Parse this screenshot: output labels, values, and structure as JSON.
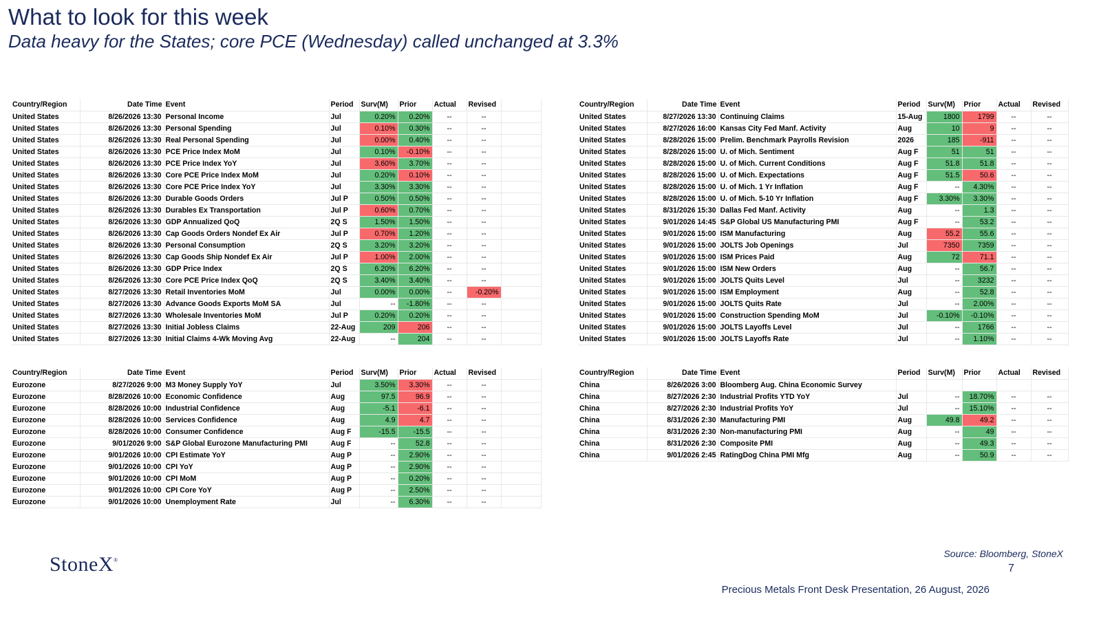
{
  "title": "What to look for this week",
  "subtitle": "Data heavy for the States; core PCE (Wednesday) called unchanged at 3.3%",
  "headers": {
    "country": "Country/Region",
    "datetime": "Date Time",
    "event": "Event",
    "period": "Period",
    "surv": "Surv(M)",
    "prior": "Prior",
    "actual": "Actual",
    "revised": "Revised"
  },
  "colors": {
    "green": "#63be7b",
    "red": "#f8696b",
    "title": "#1a2a5c"
  },
  "tables": [
    {
      "id": "us-left",
      "rows": [
        {
          "country": "United States",
          "dt": "8/26/2026 13:30",
          "event": "Personal Income",
          "period": "Jul",
          "surv": "0.20%",
          "prior": "0.20%",
          "actual": "--",
          "revised": "--",
          "sc": "g",
          "pc": "g"
        },
        {
          "country": "United States",
          "dt": "8/26/2026 13:30",
          "event": "Personal Spending",
          "period": "Jul",
          "surv": "0.10%",
          "prior": "0.30%",
          "actual": "--",
          "revised": "--",
          "sc": "r",
          "pc": "g"
        },
        {
          "country": "United States",
          "dt": "8/26/2026 13:30",
          "event": "Real Personal Spending",
          "period": "Jul",
          "surv": "0.00%",
          "prior": "0.40%",
          "actual": "--",
          "revised": "--",
          "sc": "r",
          "pc": "g"
        },
        {
          "country": "United States",
          "dt": "8/26/2026 13:30",
          "event": "PCE Price Index MoM",
          "period": "Jul",
          "surv": "0.10%",
          "prior": "-0.10%",
          "actual": "--",
          "revised": "--",
          "sc": "g",
          "pc": "r"
        },
        {
          "country": "United States",
          "dt": "8/26/2026 13:30",
          "event": "PCE Price Index YoY",
          "period": "Jul",
          "surv": "3.60%",
          "prior": "3.70%",
          "actual": "--",
          "revised": "--",
          "sc": "r",
          "pc": "g"
        },
        {
          "country": "United States",
          "dt": "8/26/2026 13:30",
          "event": "Core PCE Price Index MoM",
          "period": "Jul",
          "surv": "0.20%",
          "prior": "0.10%",
          "actual": "--",
          "revised": "--",
          "sc": "g",
          "pc": "r"
        },
        {
          "country": "United States",
          "dt": "8/26/2026 13:30",
          "event": "Core PCE Price Index YoY",
          "period": "Jul",
          "surv": "3.30%",
          "prior": "3.30%",
          "actual": "--",
          "revised": "--",
          "sc": "g",
          "pc": "g"
        },
        {
          "country": "United States",
          "dt": "8/26/2026 13:30",
          "event": "Durable Goods Orders",
          "period": "Jul P",
          "surv": "0.50%",
          "prior": "0.50%",
          "actual": "--",
          "revised": "--",
          "sc": "g",
          "pc": "g"
        },
        {
          "country": "United States",
          "dt": "8/26/2026 13:30",
          "event": "Durables Ex Transportation",
          "period": "Jul P",
          "surv": "0.60%",
          "prior": "0.70%",
          "actual": "--",
          "revised": "--",
          "sc": "r",
          "pc": "g"
        },
        {
          "country": "United States",
          "dt": "8/26/2026 13:30",
          "event": "GDP Annualized QoQ",
          "period": "2Q S",
          "surv": "1.50%",
          "prior": "1.50%",
          "actual": "--",
          "revised": "--",
          "sc": "g",
          "pc": "g"
        },
        {
          "country": "United States",
          "dt": "8/26/2026 13:30",
          "event": "Cap Goods Orders Nondef Ex Air",
          "period": "Jul P",
          "surv": "0.70%",
          "prior": "1.20%",
          "actual": "--",
          "revised": "--",
          "sc": "r",
          "pc": "g"
        },
        {
          "country": "United States",
          "dt": "8/26/2026 13:30",
          "event": "Personal Consumption",
          "period": "2Q S",
          "surv": "3.20%",
          "prior": "3.20%",
          "actual": "--",
          "revised": "--",
          "sc": "g",
          "pc": "g"
        },
        {
          "country": "United States",
          "dt": "8/26/2026 13:30",
          "event": "Cap Goods Ship Nondef Ex Air",
          "period": "Jul P",
          "surv": "1.00%",
          "prior": "2.00%",
          "actual": "--",
          "revised": "--",
          "sc": "r",
          "pc": "g"
        },
        {
          "country": "United States",
          "dt": "8/26/2026 13:30",
          "event": "GDP Price Index",
          "period": "2Q S",
          "surv": "6.20%",
          "prior": "6.20%",
          "actual": "--",
          "revised": "--",
          "sc": "g",
          "pc": "g"
        },
        {
          "country": "United States",
          "dt": "8/26/2026 13:30",
          "event": "Core PCE Price Index QoQ",
          "period": "2Q S",
          "surv": "3.40%",
          "prior": "3.40%",
          "actual": "--",
          "revised": "--",
          "sc": "g",
          "pc": "g"
        },
        {
          "country": "United States",
          "dt": "8/27/2026 13:30",
          "event": "Retail Inventories MoM",
          "period": "Jul",
          "surv": "0.00%",
          "prior": "0.00%",
          "actual": "--",
          "revised": "-0.20%",
          "sc": "g",
          "pc": "g",
          "rc": "r"
        },
        {
          "country": "United States",
          "dt": "8/27/2026 13:30",
          "event": "Advance Goods Exports MoM SA",
          "period": "Jul",
          "surv": "--",
          "prior": "-1.80%",
          "actual": "--",
          "revised": "--",
          "sc": "",
          "pc": "g"
        },
        {
          "country": "United States",
          "dt": "8/27/2026 13:30",
          "event": "Wholesale Inventories MoM",
          "period": "Jul P",
          "surv": "0.20%",
          "prior": "0.20%",
          "actual": "--",
          "revised": "--",
          "sc": "g",
          "pc": "g"
        },
        {
          "country": "United States",
          "dt": "8/27/2026 13:30",
          "event": "Initial Jobless Claims",
          "period": "22-Aug",
          "surv": "209",
          "prior": "206",
          "actual": "--",
          "revised": "--",
          "sc": "g",
          "pc": "r"
        },
        {
          "country": "United States",
          "dt": "8/27/2026 13:30",
          "event": "Initial Claims 4-Wk Moving Avg",
          "period": "22-Aug",
          "surv": "--",
          "prior": "204",
          "actual": "--",
          "revised": "--",
          "sc": "",
          "pc": "g"
        }
      ]
    },
    {
      "id": "us-right",
      "rows": [
        {
          "country": "United States",
          "dt": "8/27/2026 13:30",
          "event": "Continuing Claims",
          "period": "15-Aug",
          "surv": "1800",
          "prior": "1799",
          "actual": "--",
          "revised": "--",
          "sc": "g",
          "pc": "r"
        },
        {
          "country": "United States",
          "dt": "8/27/2026 16:00",
          "event": "Kansas City Fed Manf. Activity",
          "period": "Aug",
          "surv": "10",
          "prior": "9",
          "actual": "--",
          "revised": "--",
          "sc": "g",
          "pc": "r"
        },
        {
          "country": "United States",
          "dt": "8/28/2026 15:00",
          "event": "Prelim. Benchmark Payrolls Revision",
          "period": "2026",
          "surv": "185",
          "prior": "-911",
          "actual": "--",
          "revised": "--",
          "sc": "g",
          "pc": "r"
        },
        {
          "country": "United States",
          "dt": "8/28/2026 15:00",
          "event": "U. of Mich. Sentiment",
          "period": "Aug F",
          "surv": "51",
          "prior": "51",
          "actual": "--",
          "revised": "--",
          "sc": "g",
          "pc": "g"
        },
        {
          "country": "United States",
          "dt": "8/28/2026 15:00",
          "event": "U. of Mich. Current Conditions",
          "period": "Aug F",
          "surv": "51.8",
          "prior": "51.8",
          "actual": "--",
          "revised": "--",
          "sc": "g",
          "pc": "g"
        },
        {
          "country": "United States",
          "dt": "8/28/2026 15:00",
          "event": "U. of Mich. Expectations",
          "period": "Aug F",
          "surv": "51.5",
          "prior": "50.6",
          "actual": "--",
          "revised": "--",
          "sc": "g",
          "pc": "r"
        },
        {
          "country": "United States",
          "dt": "8/28/2026 15:00",
          "event": "U. of Mich. 1 Yr Inflation",
          "period": "Aug F",
          "surv": "--",
          "prior": "4.30%",
          "actual": "--",
          "revised": "--",
          "sc": "",
          "pc": "g"
        },
        {
          "country": "United States",
          "dt": "8/28/2026 15:00",
          "event": "U. of Mich. 5-10 Yr Inflation",
          "period": "Aug F",
          "surv": "3.30%",
          "prior": "3.30%",
          "actual": "--",
          "revised": "--",
          "sc": "g",
          "pc": "g"
        },
        {
          "country": "United States",
          "dt": "8/31/2026 15:30",
          "event": "Dallas Fed Manf. Activity",
          "period": "Aug",
          "surv": "--",
          "prior": "1.3",
          "actual": "--",
          "revised": "--",
          "sc": "",
          "pc": "g"
        },
        {
          "country": "United States",
          "dt": "9/01/2026 14:45",
          "event": "S&P Global US Manufacturing PMI",
          "period": "Aug F",
          "surv": "--",
          "prior": "53.2",
          "actual": "--",
          "revised": "--",
          "sc": "",
          "pc": "g"
        },
        {
          "country": "United States",
          "dt": "9/01/2026 15:00",
          "event": "ISM Manufacturing",
          "period": "Aug",
          "surv": "55.2",
          "prior": "55.6",
          "actual": "--",
          "revised": "--",
          "sc": "r",
          "pc": "g"
        },
        {
          "country": "United States",
          "dt": "9/01/2026 15:00",
          "event": "JOLTS Job Openings",
          "period": "Jul",
          "surv": "7350",
          "prior": "7359",
          "actual": "--",
          "revised": "--",
          "sc": "r",
          "pc": "g"
        },
        {
          "country": "United States",
          "dt": "9/01/2026 15:00",
          "event": "ISM Prices Paid",
          "period": "Aug",
          "surv": "72",
          "prior": "71.1",
          "actual": "--",
          "revised": "--",
          "sc": "g",
          "pc": "r"
        },
        {
          "country": "United States",
          "dt": "9/01/2026 15:00",
          "event": "ISM New Orders",
          "period": "Aug",
          "surv": "--",
          "prior": "56.7",
          "actual": "--",
          "revised": "--",
          "sc": "",
          "pc": "g"
        },
        {
          "country": "United States",
          "dt": "9/01/2026 15:00",
          "event": "JOLTS Quits Level",
          "period": "Jul",
          "surv": "--",
          "prior": "3232",
          "actual": "--",
          "revised": "--",
          "sc": "",
          "pc": "g"
        },
        {
          "country": "United States",
          "dt": "9/01/2026 15:00",
          "event": "ISM Employment",
          "period": "Aug",
          "surv": "--",
          "prior": "52.8",
          "actual": "--",
          "revised": "--",
          "sc": "",
          "pc": "g"
        },
        {
          "country": "United States",
          "dt": "9/01/2026 15:00",
          "event": "JOLTS Quits Rate",
          "period": "Jul",
          "surv": "--",
          "prior": "2.00%",
          "actual": "--",
          "revised": "--",
          "sc": "",
          "pc": "g"
        },
        {
          "country": "United States",
          "dt": "9/01/2026 15:00",
          "event": "Construction Spending MoM",
          "period": "Jul",
          "surv": "-0.10%",
          "prior": "-0.10%",
          "actual": "--",
          "revised": "--",
          "sc": "g",
          "pc": "g"
        },
        {
          "country": "United States",
          "dt": "9/01/2026 15:00",
          "event": "JOLTS Layoffs Level",
          "period": "Jul",
          "surv": "--",
          "prior": "1766",
          "actual": "--",
          "revised": "--",
          "sc": "",
          "pc": "g"
        },
        {
          "country": "United States",
          "dt": "9/01/2026 15:00",
          "event": "JOLTS Layoffs Rate",
          "period": "Jul",
          "surv": "--",
          "prior": "1.10%",
          "actual": "--",
          "revised": "--",
          "sc": "",
          "pc": "g"
        }
      ]
    },
    {
      "id": "eurozone",
      "rows": [
        {
          "country": "Eurozone",
          "dt": "8/27/2026 9:00",
          "event": "M3 Money Supply YoY",
          "period": "Jul",
          "surv": "3.50%",
          "prior": "3.30%",
          "actual": "--",
          "revised": "--",
          "sc": "g",
          "pc": "r"
        },
        {
          "country": "Eurozone",
          "dt": "8/28/2026 10:00",
          "event": "Economic Confidence",
          "period": "Aug",
          "surv": "97.5",
          "prior": "96.9",
          "actual": "--",
          "revised": "--",
          "sc": "g",
          "pc": "r"
        },
        {
          "country": "Eurozone",
          "dt": "8/28/2026 10:00",
          "event": "Industrial Confidence",
          "period": "Aug",
          "surv": "-5.1",
          "prior": "-6.1",
          "actual": "--",
          "revised": "--",
          "sc": "g",
          "pc": "r"
        },
        {
          "country": "Eurozone",
          "dt": "8/28/2026 10:00",
          "event": "Services Confidence",
          "period": "Aug",
          "surv": "4.9",
          "prior": "4.7",
          "actual": "--",
          "revised": "--",
          "sc": "g",
          "pc": "r"
        },
        {
          "country": "Eurozone",
          "dt": "8/28/2026 10:00",
          "event": "Consumer Confidence",
          "period": "Aug F",
          "surv": "-15.5",
          "prior": "-15.5",
          "actual": "--",
          "revised": "--",
          "sc": "g",
          "pc": "g"
        },
        {
          "country": "Eurozone",
          "dt": "9/01/2026 9:00",
          "event": "S&P Global Eurozone Manufacturing PMI",
          "period": "Aug F",
          "surv": "--",
          "prior": "52.8",
          "actual": "--",
          "revised": "--",
          "sc": "",
          "pc": "g"
        },
        {
          "country": "Eurozone",
          "dt": "9/01/2026 10:00",
          "event": "CPI Estimate YoY",
          "period": "Aug P",
          "surv": "--",
          "prior": "2.90%",
          "actual": "--",
          "revised": "--",
          "sc": "",
          "pc": "g"
        },
        {
          "country": "Eurozone",
          "dt": "9/01/2026 10:00",
          "event": "CPI YoY",
          "period": "Aug P",
          "surv": "--",
          "prior": "2.90%",
          "actual": "--",
          "revised": "--",
          "sc": "",
          "pc": "g"
        },
        {
          "country": "Eurozone",
          "dt": "9/01/2026 10:00",
          "event": "CPI MoM",
          "period": "Aug P",
          "surv": "--",
          "prior": "0.20%",
          "actual": "--",
          "revised": "--",
          "sc": "",
          "pc": "g"
        },
        {
          "country": "Eurozone",
          "dt": "9/01/2026 10:00",
          "event": "CPI Core YoY",
          "period": "Aug P",
          "surv": "--",
          "prior": "2.50%",
          "actual": "--",
          "revised": "--",
          "sc": "",
          "pc": "g"
        },
        {
          "country": "Eurozone",
          "dt": "9/01/2026 10:00",
          "event": "Unemployment Rate",
          "period": "Jul",
          "surv": "--",
          "prior": "6.30%",
          "actual": "--",
          "revised": "--",
          "sc": "",
          "pc": "g"
        }
      ]
    },
    {
      "id": "china",
      "rows": [
        {
          "country": "China",
          "dt": "8/26/2026 3:00",
          "event": "Bloomberg Aug. China Economic Survey",
          "period": "",
          "surv": "",
          "prior": "",
          "actual": "",
          "revised": "",
          "sc": "",
          "pc": ""
        },
        {
          "country": "China",
          "dt": "8/27/2026 2:30",
          "event": "Industrial Profits YTD YoY",
          "period": "Jul",
          "surv": "--",
          "prior": "18.70%",
          "actual": "--",
          "revised": "--",
          "sc": "",
          "pc": "g"
        },
        {
          "country": "China",
          "dt": "8/27/2026 2:30",
          "event": "Industrial Profits YoY",
          "period": "Jul",
          "surv": "--",
          "prior": "15.10%",
          "actual": "--",
          "revised": "--",
          "sc": "",
          "pc": "g"
        },
        {
          "country": "China",
          "dt": "8/31/2026 2:30",
          "event": "Manufacturing PMI",
          "period": "Aug",
          "surv": "49.8",
          "prior": "49.2",
          "actual": "--",
          "revised": "--",
          "sc": "g",
          "pc": "r"
        },
        {
          "country": "China",
          "dt": "8/31/2026 2:30",
          "event": "Non-manufacturing PMI",
          "period": "Aug",
          "surv": "--",
          "prior": "49",
          "actual": "--",
          "revised": "--",
          "sc": "",
          "pc": "g"
        },
        {
          "country": "China",
          "dt": "8/31/2026 2:30",
          "event": "Composite PMI",
          "period": "Aug",
          "surv": "--",
          "prior": "49.3",
          "actual": "--",
          "revised": "--",
          "sc": "",
          "pc": "g"
        },
        {
          "country": "China",
          "dt": "9/01/2026 2:45",
          "event": "RatingDog China PMI Mfg",
          "period": "Aug",
          "surv": "--",
          "prior": "50.9",
          "actual": "--",
          "revised": "--",
          "sc": "",
          "pc": "g"
        }
      ]
    }
  ],
  "footer": {
    "logo": "StoneX",
    "logo_mark": "®",
    "source": "Source: Bloomberg, StoneX",
    "page_number": "7",
    "presentation": "Precious Metals Front Desk Presentation, 26 August, 2026"
  }
}
